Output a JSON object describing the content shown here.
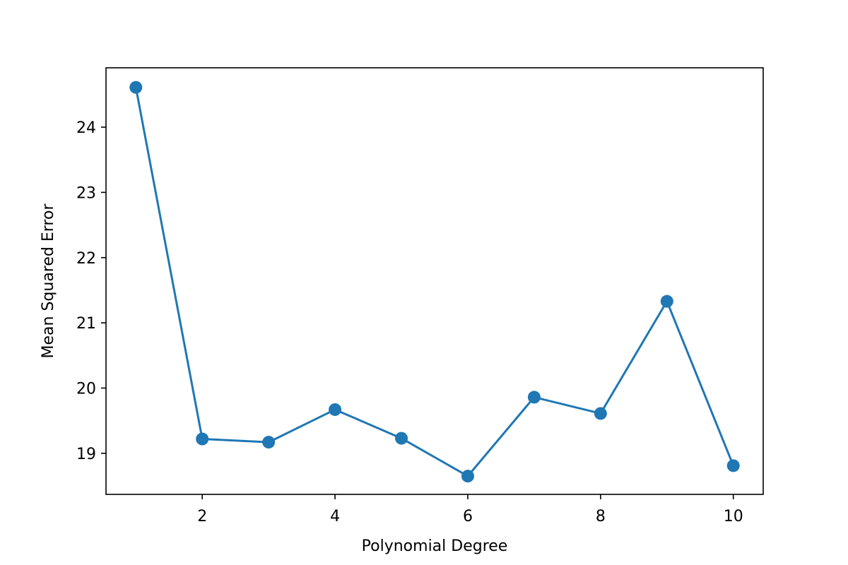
{
  "chart_data": {
    "type": "line",
    "title": "",
    "xlabel": "Polynomial Degree",
    "ylabel": "Mean Squared Error",
    "x": [
      1,
      2,
      3,
      4,
      5,
      6,
      7,
      8,
      9,
      10
    ],
    "series": [
      {
        "values": [
          24.61,
          19.22,
          19.17,
          19.67,
          19.23,
          18.65,
          19.86,
          19.61,
          21.33,
          18.81
        ],
        "color": "#1f77b4",
        "marker": "circle"
      }
    ],
    "xlim": [
      0.55,
      10.45
    ],
    "ylim": [
      18.37,
      24.91
    ],
    "xticks": [
      2,
      4,
      6,
      8,
      10
    ],
    "yticks": [
      19,
      20,
      21,
      22,
      23,
      24
    ],
    "grid": false,
    "legend": "none"
  }
}
